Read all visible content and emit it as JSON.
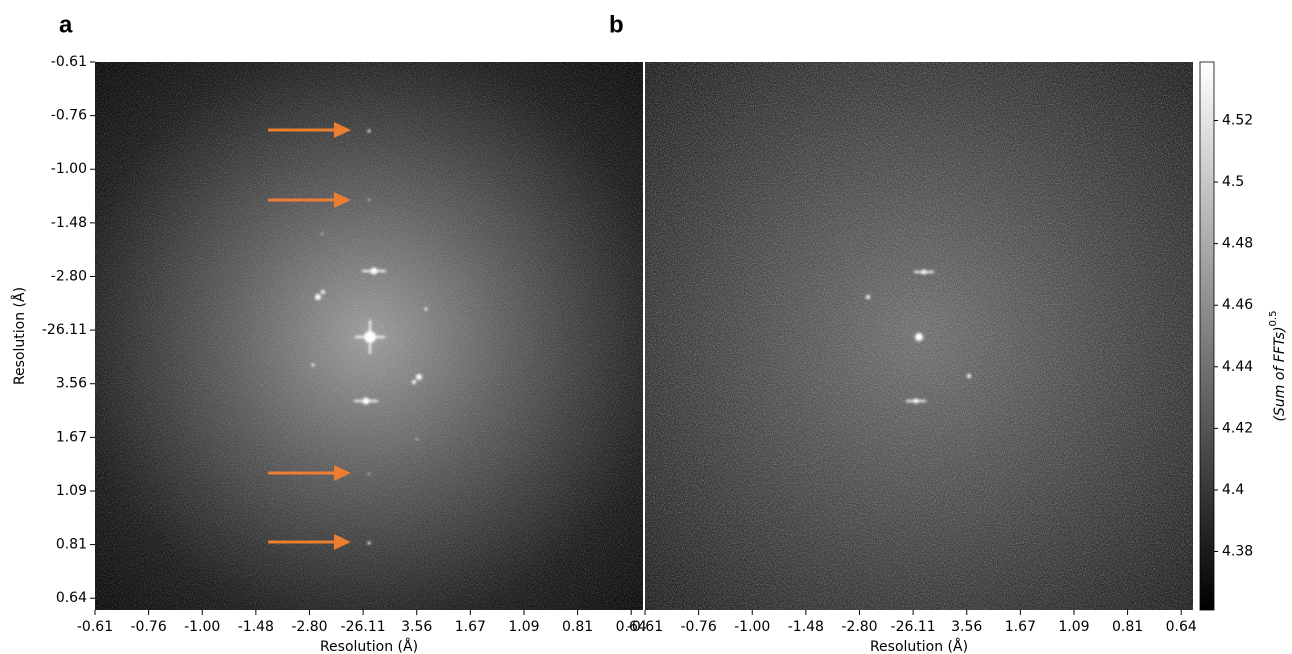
{
  "chart_data": [
    {
      "type": "image",
      "panel_label": "a",
      "x_label": "Resolution (Å)",
      "y_label": "Resolution (Å)",
      "x_categories": [
        "-0.61",
        "-0.76",
        "-1.00",
        "-1.48",
        "-2.80",
        "-26.11",
        "3.56",
        "1.67",
        "1.09",
        "0.81",
        "0.64"
      ],
      "y_categories": [
        "-0.61",
        "-0.76",
        "-1.00",
        "-1.48",
        "-2.80",
        "-26.11",
        "3.56",
        "1.67",
        "1.09",
        "0.81",
        "0.64"
      ]
    },
    {
      "type": "image",
      "panel_label": "b",
      "x_label": "Resolution (Å)",
      "x_categories": [
        "-0.61",
        "-0.76",
        "-1.00",
        "-1.48",
        "-2.80",
        "-26.11",
        "3.56",
        "1.67",
        "1.09",
        "0.81",
        "0.64"
      ]
    },
    {
      "type": "colorbar",
      "label": "(Sum of FFTs)",
      "label_exponent": "0.5",
      "ylim": [
        4.361,
        4.539
      ],
      "yticks": [
        4.38,
        4.4,
        4.42,
        4.44,
        4.46,
        4.48,
        4.5,
        4.52
      ]
    }
  ]
}
